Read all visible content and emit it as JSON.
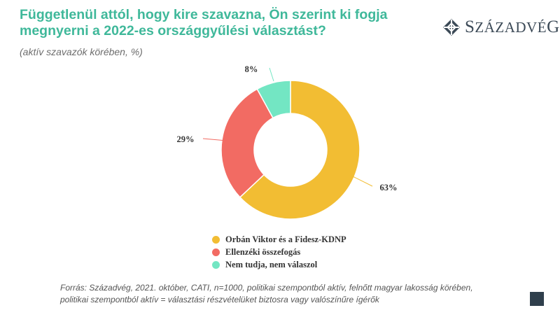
{
  "header": {
    "title": "Függetlenül attól, hogy kire szavazna, Ön szerint ki fogja megnyerni a 2022-es országgyűlési választást?",
    "subtitle": "(aktív szavazók körében, %)"
  },
  "logo": {
    "text_initial": "S",
    "text_middle": "ZÁZADVÉ",
    "text_final": "G"
  },
  "chart_data": {
    "type": "pie",
    "variant": "donut",
    "unit": "%",
    "slices": [
      {
        "label": "Orbán Viktor és a Fidesz-KDNP",
        "value": 63,
        "display": "63%",
        "color": "#f2bd33"
      },
      {
        "label": "Ellenzéki összefogás",
        "value": 29,
        "display": "29%",
        "color": "#f26b63"
      },
      {
        "label": "Nem tudja, nem válaszol",
        "value": 8,
        "display": "8%",
        "color": "#73e6c3"
      }
    ]
  },
  "legend": {
    "items": [
      {
        "label": "Orbán Viktor és a Fidesz-KDNP",
        "color": "#f2bd33"
      },
      {
        "label": "Ellenzéki összefogás",
        "color": "#f26b63"
      },
      {
        "label": "Nem tudja, nem válaszol",
        "color": "#73e6c3"
      }
    ]
  },
  "footer": {
    "source_line1": "Forrás: Századvég, 2021. október, CATI, n=1000, politikai szempontból aktív, felnőtt magyar lakosság körében,",
    "source_line2": "politikai szempontból aktív = választási részvételüket biztosra vagy valószínűre ígérők"
  },
  "colors": {
    "title": "#3fb89a",
    "logo": "#3c4a57",
    "corner_square": "#2f3f4c"
  }
}
